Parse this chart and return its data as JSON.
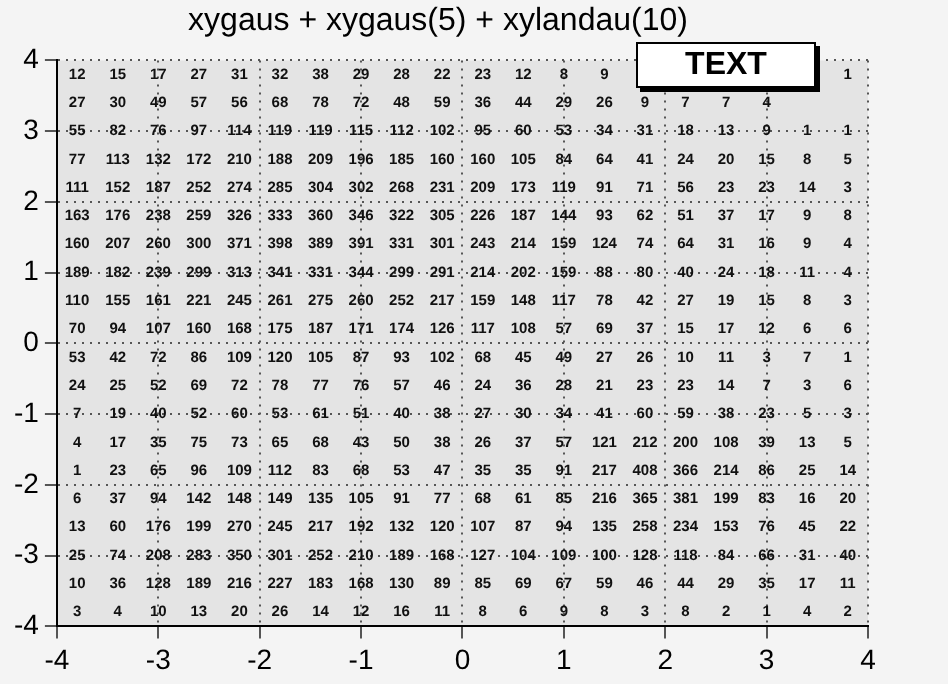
{
  "chart_data": {
    "type": "heatmap",
    "title": "xygaus + xygaus(5) + xylandau(10)",
    "annotations": [
      "TEXT"
    ],
    "xlim": [
      -4,
      4
    ],
    "xticks": [
      -4,
      -3,
      -2,
      -1,
      0,
      1,
      2,
      3,
      4
    ],
    "ylim": [
      -4,
      4
    ],
    "yticks": [
      -4,
      -3,
      -2,
      -1,
      0,
      1,
      2,
      3,
      4
    ],
    "grid": true,
    "data_labels": true,
    "cells": [
      [
        12,
        15,
        17,
        27,
        31,
        32,
        38,
        29,
        28,
        22,
        23,
        12,
        8,
        9,
        null,
        null,
        null,
        null,
        null,
        1
      ],
      [
        27,
        30,
        49,
        57,
        56,
        68,
        78,
        72,
        48,
        59,
        36,
        44,
        29,
        26,
        9,
        7,
        7,
        4,
        null,
        null
      ],
      [
        55,
        82,
        76,
        97,
        114,
        119,
        119,
        115,
        112,
        102,
        95,
        60,
        53,
        34,
        31,
        18,
        13,
        9,
        1,
        1
      ],
      [
        77,
        113,
        132,
        172,
        210,
        188,
        209,
        196,
        185,
        160,
        160,
        105,
        84,
        64,
        41,
        24,
        20,
        15,
        8,
        5
      ],
      [
        111,
        152,
        187,
        252,
        274,
        285,
        304,
        302,
        268,
        231,
        209,
        173,
        119,
        91,
        71,
        56,
        23,
        23,
        14,
        3
      ],
      [
        163,
        176,
        238,
        259,
        326,
        333,
        360,
        346,
        322,
        305,
        226,
        187,
        144,
        93,
        62,
        51,
        37,
        17,
        9,
        8
      ],
      [
        160,
        207,
        260,
        300,
        371,
        398,
        389,
        391,
        331,
        301,
        243,
        214,
        159,
        124,
        74,
        64,
        31,
        16,
        9,
        4
      ],
      [
        189,
        182,
        239,
        299,
        313,
        341,
        331,
        344,
        299,
        291,
        214,
        202,
        159,
        88,
        80,
        40,
        24,
        18,
        11,
        4
      ],
      [
        110,
        155,
        161,
        221,
        245,
        261,
        275,
        260,
        252,
        217,
        159,
        148,
        117,
        78,
        42,
        27,
        19,
        15,
        8,
        3
      ],
      [
        70,
        94,
        107,
        160,
        168,
        175,
        187,
        171,
        174,
        126,
        117,
        108,
        57,
        69,
        37,
        15,
        17,
        12,
        6,
        6
      ],
      [
        53,
        42,
        72,
        86,
        109,
        120,
        105,
        87,
        93,
        102,
        68,
        45,
        49,
        27,
        26,
        10,
        11,
        3,
        7,
        1
      ],
      [
        24,
        25,
        52,
        69,
        72,
        78,
        77,
        76,
        57,
        46,
        24,
        36,
        28,
        21,
        23,
        23,
        14,
        7,
        3,
        6
      ],
      [
        7,
        19,
        40,
        52,
        60,
        53,
        61,
        51,
        40,
        38,
        27,
        30,
        34,
        41,
        60,
        59,
        38,
        23,
        5,
        3
      ],
      [
        4,
        17,
        35,
        75,
        73,
        65,
        68,
        43,
        50,
        38,
        26,
        37,
        57,
        121,
        212,
        200,
        108,
        39,
        13,
        5
      ],
      [
        1,
        23,
        65,
        96,
        109,
        112,
        83,
        68,
        53,
        47,
        35,
        35,
        91,
        217,
        408,
        366,
        214,
        86,
        25,
        14
      ],
      [
        6,
        37,
        94,
        142,
        148,
        149,
        135,
        105,
        91,
        77,
        68,
        61,
        85,
        216,
        365,
        381,
        199,
        83,
        16,
        20
      ],
      [
        13,
        60,
        176,
        199,
        270,
        245,
        217,
        192,
        132,
        120,
        107,
        87,
        94,
        135,
        258,
        234,
        153,
        76,
        45,
        22
      ],
      [
        25,
        74,
        208,
        283,
        350,
        301,
        252,
        210,
        189,
        168,
        127,
        104,
        109,
        100,
        128,
        118,
        84,
        66,
        31,
        40
      ],
      [
        10,
        36,
        128,
        189,
        216,
        227,
        183,
        168,
        130,
        89,
        85,
        69,
        67,
        59,
        46,
        44,
        29,
        35,
        17,
        11
      ],
      [
        3,
        4,
        10,
        13,
        20,
        26,
        14,
        12,
        16,
        11,
        8,
        6,
        9,
        8,
        3,
        8,
        2,
        1,
        4,
        2
      ]
    ]
  }
}
